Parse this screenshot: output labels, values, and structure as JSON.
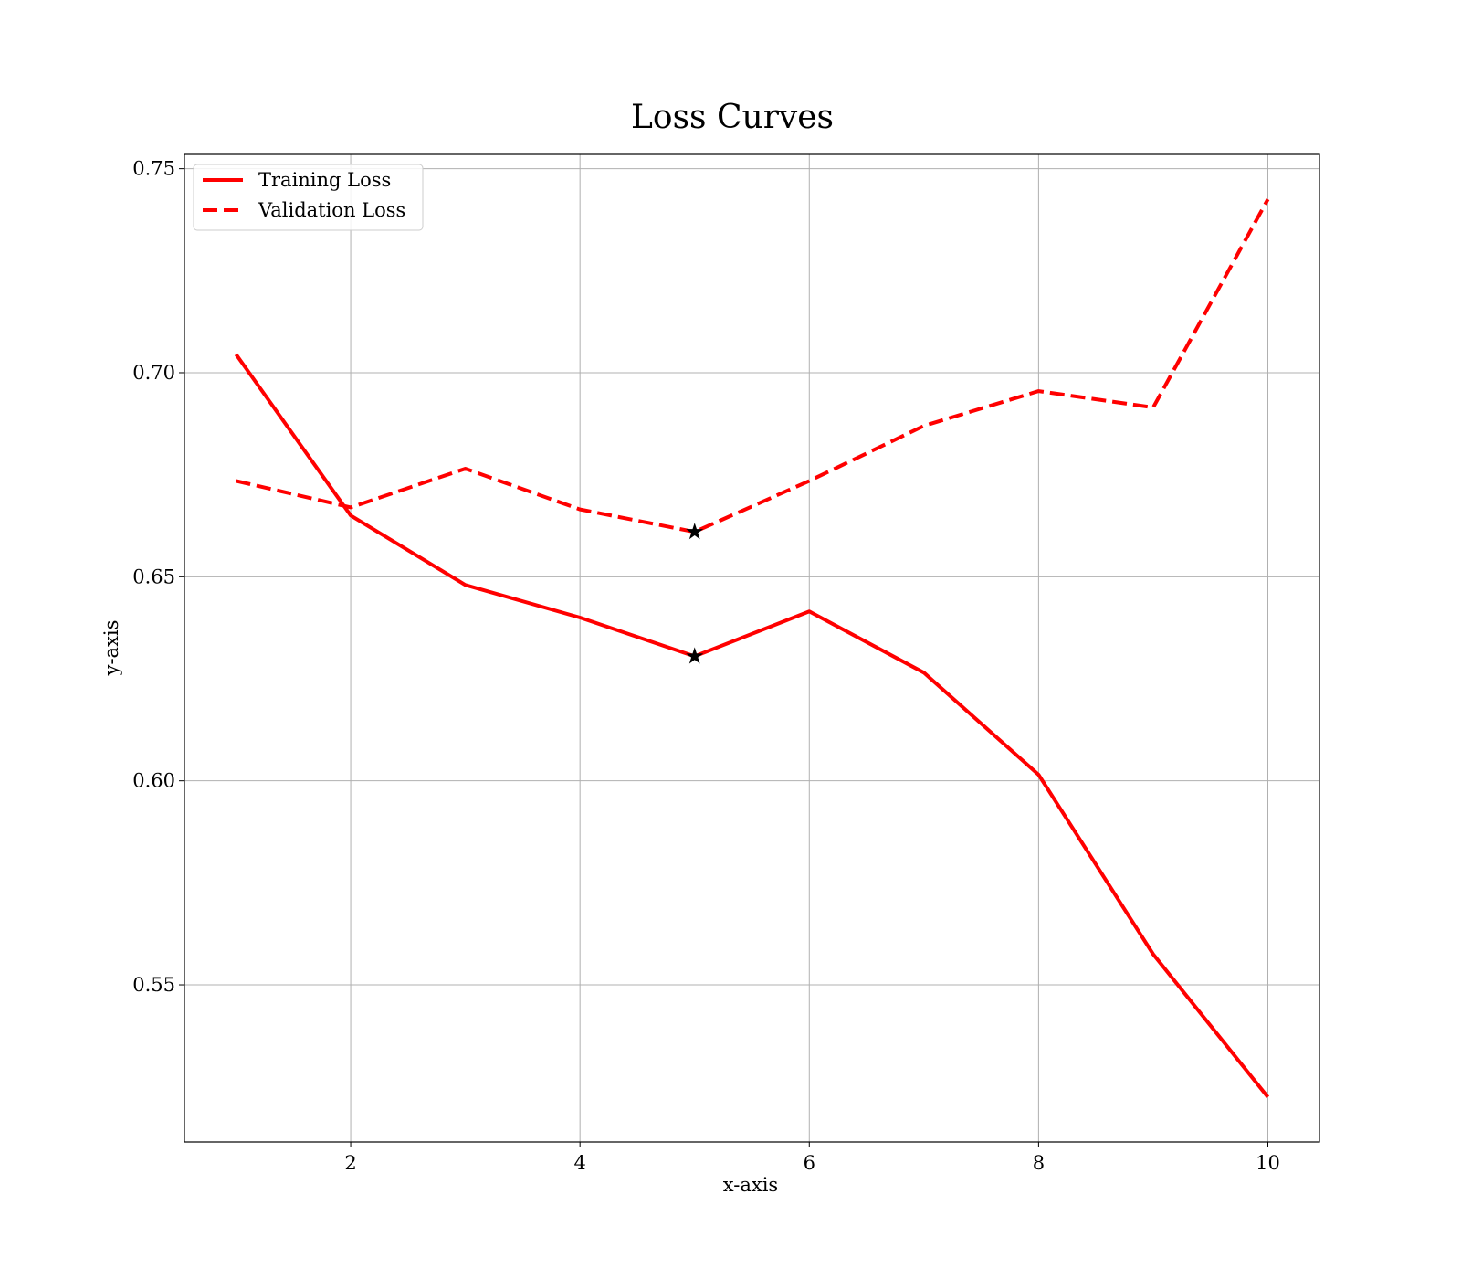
{
  "chart_data": {
    "type": "line",
    "title": "Loss Curves",
    "xlabel": "x-axis",
    "ylabel": "y-axis",
    "xlim": [
      0.55,
      10.45
    ],
    "ylim": [
      0.5115,
      0.7535
    ],
    "xticks": [
      2,
      4,
      6,
      8,
      10
    ],
    "xtick_labels": [
      "2",
      "4",
      "6",
      "8",
      "10"
    ],
    "yticks": [
      0.55,
      0.6,
      0.65,
      0.7,
      0.75
    ],
    "ytick_labels": [
      "0.55",
      "0.60",
      "0.65",
      "0.70",
      "0.75"
    ],
    "grid": true,
    "legend_position": "top-left",
    "x": [
      1,
      2,
      3,
      4,
      5,
      6,
      7,
      8,
      9,
      10
    ],
    "series": [
      {
        "name": "Training Loss",
        "style": "solid",
        "color": "#ff0000",
        "values": [
          0.7045,
          0.665,
          0.648,
          0.64,
          0.6305,
          0.6415,
          0.6265,
          0.6015,
          0.5575,
          0.5225
        ]
      },
      {
        "name": "Validation Loss",
        "style": "dashed",
        "color": "#ff0000",
        "values": [
          0.6735,
          0.667,
          0.6765,
          0.6665,
          0.661,
          0.6735,
          0.687,
          0.6955,
          0.6915,
          0.7425
        ]
      }
    ],
    "markers": [
      {
        "series": "Training Loss",
        "x": 5,
        "y": 0.6305,
        "symbol": "star",
        "color": "#000000"
      },
      {
        "series": "Validation Loss",
        "x": 5,
        "y": 0.661,
        "symbol": "star",
        "color": "#000000"
      }
    ]
  }
}
